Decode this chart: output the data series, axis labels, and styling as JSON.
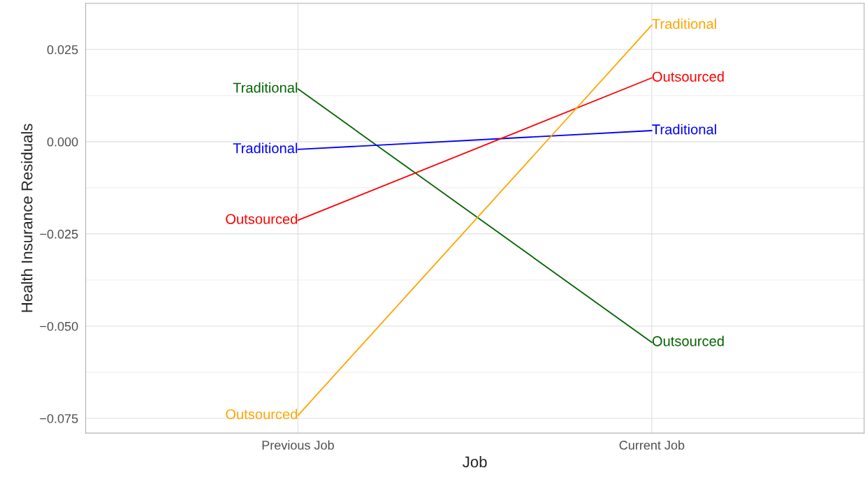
{
  "chart_data": {
    "type": "line",
    "xlabel": "Job",
    "ylabel": "Health Insurance Residuals",
    "categories": [
      "Previous Job",
      "Current Job"
    ],
    "series": [
      {
        "color": "#006400",
        "values": [
          0.0143,
          -0.0544
        ]
      },
      {
        "color": "#0000ff",
        "values": [
          -0.0021,
          0.003
        ]
      },
      {
        "color": "#ff0000",
        "values": [
          -0.0213,
          0.0173
        ]
      },
      {
        "color": "#ffa500",
        "values": [
          -0.0742,
          0.0316
        ]
      }
    ],
    "annotations": [
      {
        "text": "Traditional",
        "x": "Previous Job",
        "y": 0.0143
      },
      {
        "text": "Outsourced",
        "x": "Current Job",
        "y": -0.0544
      },
      {
        "text": "Traditional",
        "x": "Previous Job",
        "y": -0.0021
      },
      {
        "text": "Traditional",
        "x": "Current Job",
        "y": 0.003
      },
      {
        "text": "Outsourced",
        "x": "Previous Job",
        "y": -0.0213
      },
      {
        "text": "Outsourced",
        "x": "Current Job",
        "y": 0.0173
      },
      {
        "text": "Outsourced",
        "x": "Previous Job",
        "y": -0.0742
      },
      {
        "text": "Traditional",
        "x": "Current Job",
        "y": 0.0316
      }
    ],
    "ylim": [
      -0.079,
      0.0369
    ],
    "yticks": [
      {
        "value": -0.075,
        "label": "−0.075"
      },
      {
        "value": -0.05,
        "label": "−0.050"
      },
      {
        "value": -0.025,
        "label": "−0.025"
      },
      {
        "value": 0,
        "label": "0.000"
      },
      {
        "value": 0.025,
        "label": "0.025"
      }
    ],
    "grid": true,
    "marker": "none",
    "line_style": "solid"
  }
}
